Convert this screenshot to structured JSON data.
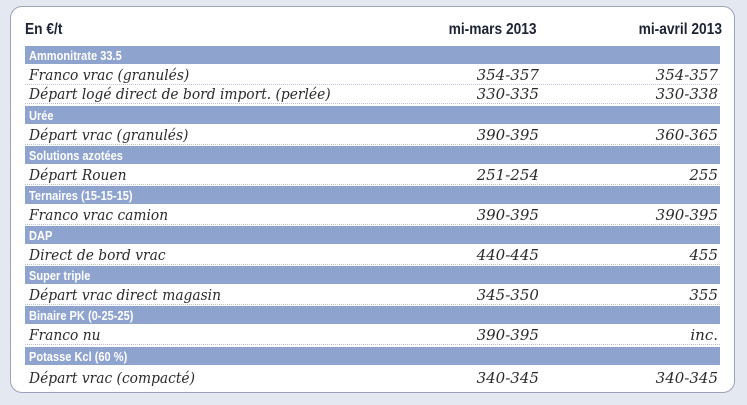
{
  "header": {
    "unit": "En €/t",
    "col1": "mi-mars 2013",
    "col2": "mi-avril 2013"
  },
  "sections": [
    {
      "title": "Ammonitrate 33.5",
      "rows": [
        {
          "label": "Franco vrac (granulés)",
          "mars": "354-357",
          "avril": "354-357"
        },
        {
          "label": "Départ logé direct de bord import. (perlée)",
          "mars": "330-335",
          "avril": "330-338"
        }
      ]
    },
    {
      "title": "Urée",
      "rows": [
        {
          "label": "Départ vrac (granulés)",
          "mars": "390-395",
          "avril": "360-365"
        }
      ]
    },
    {
      "title": "Solutions azotées",
      "rows": [
        {
          "label": "Départ Rouen",
          "mars": "251-254",
          "avril": "255"
        }
      ]
    },
    {
      "title": "Ternaires (15-15-15)",
      "rows": [
        {
          "label": "Franco vrac camion",
          "mars": "390-395",
          "avril": "390-395"
        }
      ]
    },
    {
      "title": "DAP",
      "rows": [
        {
          "label": "Direct de bord vrac",
          "mars": "440-445",
          "avril": "455"
        }
      ]
    },
    {
      "title": "Super triple",
      "rows": [
        {
          "label": "Départ vrac direct magasin",
          "mars": "345-350",
          "avril": "355"
        }
      ]
    },
    {
      "title": "Binaire PK (0-25-25)",
      "rows": [
        {
          "label": "Franco nu",
          "mars": "390-395",
          "avril": "inc."
        }
      ]
    },
    {
      "title": "Potasse Kcl (60 %)",
      "rows": [
        {
          "label": "Départ vrac (compacté)",
          "mars": "340-345",
          "avril": "340-345"
        }
      ]
    }
  ]
}
